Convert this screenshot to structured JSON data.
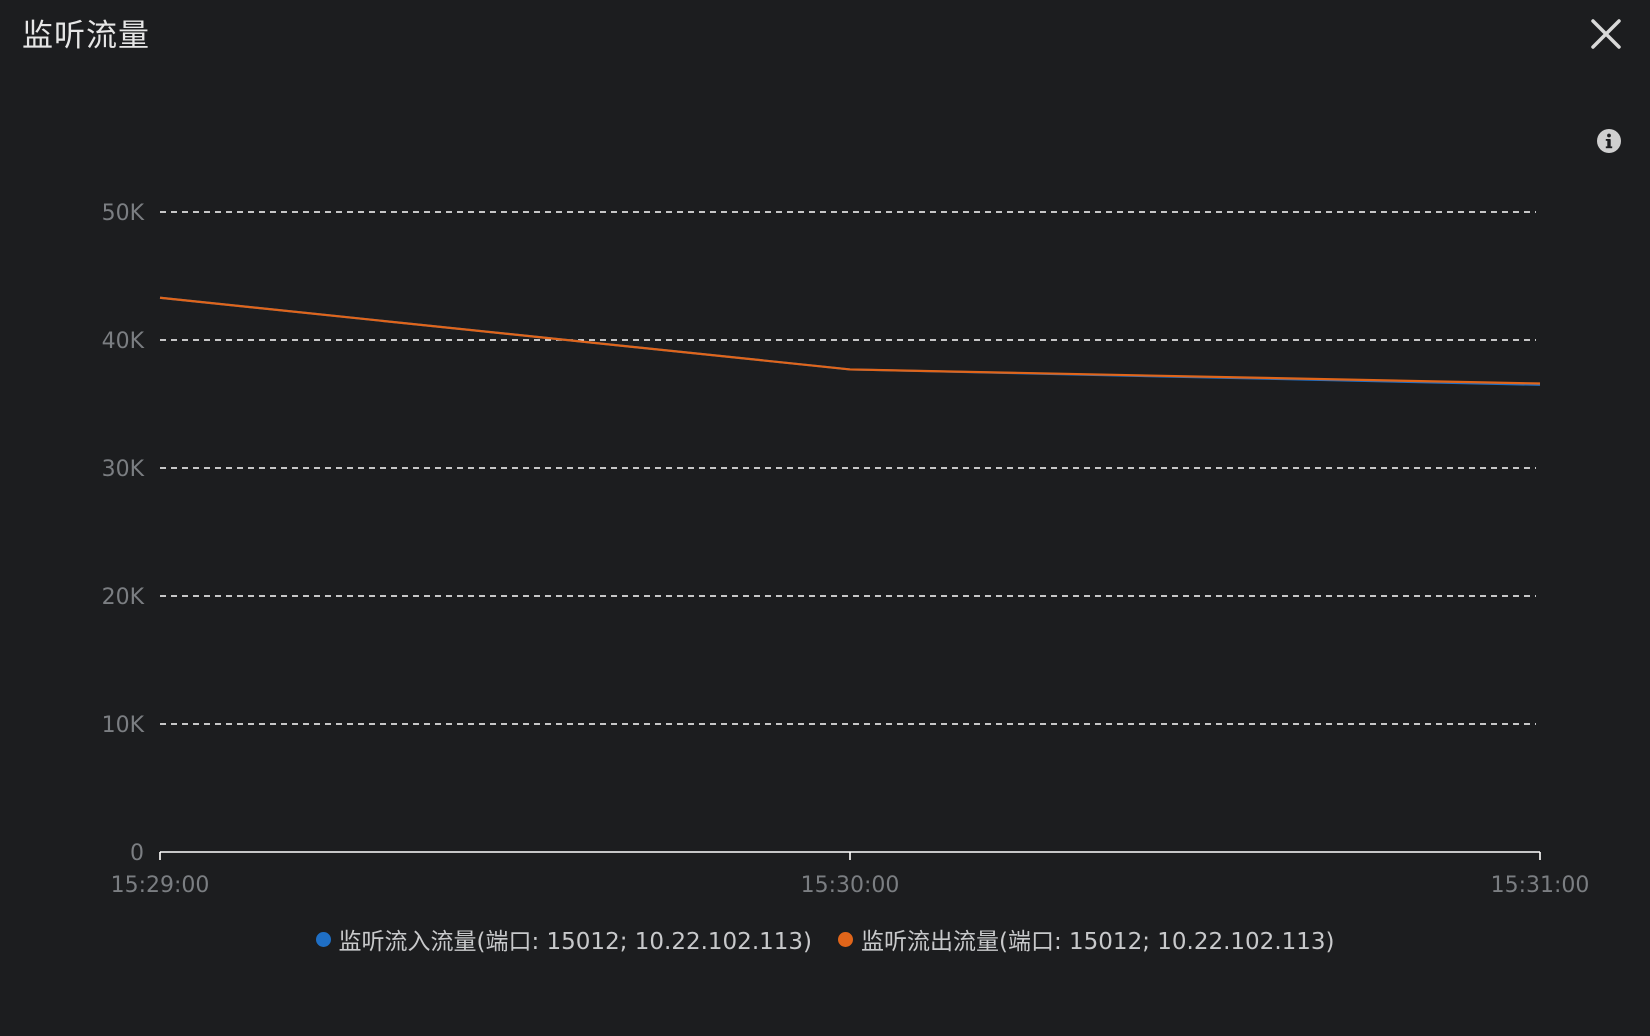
{
  "panel": {
    "title": "监听流量",
    "close_icon": "close-icon",
    "info_icon": "info-icon"
  },
  "colors": {
    "background": "#1c1d1f",
    "inbound": "#1f6fc5",
    "outbound": "#e0651a",
    "grid": "#ffffff",
    "axis": "#ffffff",
    "tick_text": "#7b7e82"
  },
  "chart_data": {
    "type": "line",
    "title": "",
    "xlabel": "",
    "ylabel": "",
    "x": [
      "15:29:00",
      "15:30:00",
      "15:31:00"
    ],
    "x_ticks": [
      "15:29:00",
      "15:30:00",
      "15:31:00"
    ],
    "y_ticks": [
      "0",
      "10K",
      "20K",
      "30K",
      "40K",
      "50K"
    ],
    "y_tick_values": [
      0,
      10000,
      20000,
      30000,
      40000,
      50000
    ],
    "ylim": [
      0,
      50000
    ],
    "grid": "horizontal-dashed",
    "legend_position": "bottom-center",
    "series": [
      {
        "name": "监听流入流量(端口: 15012; 10.22.102.113)",
        "values": [
          43300,
          37700,
          36500
        ]
      },
      {
        "name": "监听流出流量(端口: 15012; 10.22.102.113)",
        "values": [
          43300,
          37700,
          36600
        ]
      }
    ]
  }
}
